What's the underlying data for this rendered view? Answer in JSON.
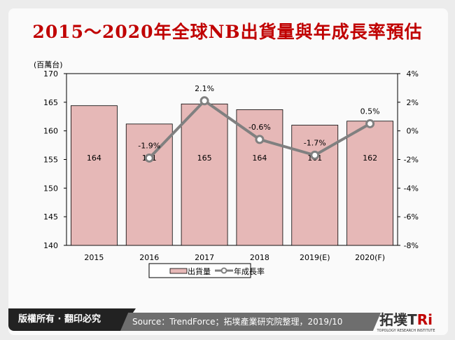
{
  "header": {
    "title": "2015～2020年全球NB出貨量與年成長率預估"
  },
  "chart_data": {
    "type": "bar+line",
    "title": "2015～2020年全球NB出貨量與年成長率預估",
    "ylabel": "(百萬台)",
    "categories": [
      "2015",
      "2016",
      "2017",
      "2018",
      "2019(E)",
      "2020(F)"
    ],
    "series": [
      {
        "name": "出貨量",
        "type": "bar",
        "axis": "left",
        "values": [
          164.4,
          161.2,
          164.7,
          163.7,
          161.0,
          161.7
        ],
        "labels": [
          "164",
          "161",
          "165",
          "164",
          "161",
          "162"
        ],
        "color": "#e6b8b7"
      },
      {
        "name": "年成長率",
        "type": "line",
        "axis": "right",
        "values": [
          null,
          -1.9,
          2.1,
          -0.6,
          -1.7,
          0.5
        ],
        "labels": [
          "",
          "-1.9%",
          "2.1%",
          "-0.6%",
          "-1.7%",
          "0.5%"
        ],
        "color": "#808080"
      }
    ],
    "ylim": [
      140,
      170
    ],
    "yticks": [
      "140",
      "145",
      "150",
      "155",
      "160",
      "165",
      "170"
    ],
    "y2lim": [
      -8,
      4
    ],
    "y2ticks": [
      "-8%",
      "-6%",
      "-4%",
      "-2%",
      "0%",
      "2%",
      "4%"
    ],
    "legend": "bottom"
  },
  "footer": {
    "copyright": "版權所有 · 翻印必究",
    "source": "Source：TrendForce；拓墣產業研究院整理，2019/10",
    "logo_main": "拓墣TRi",
    "logo_sub": "TOPOLOGY RESEARCH INSTITUTE"
  }
}
